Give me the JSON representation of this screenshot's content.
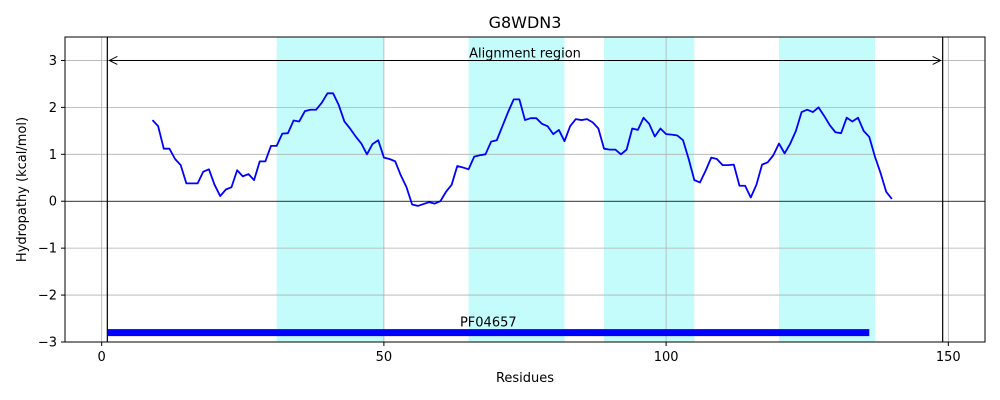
{
  "chart_data": {
    "type": "line",
    "title": "G8WDN3",
    "xlabel": "Residues",
    "ylabel": "Hydropathy (kcal/mol)",
    "xlim": [
      -6.5,
      156.5
    ],
    "ylim": [
      -3,
      3.5
    ],
    "xticks": [
      0,
      50,
      100,
      150
    ],
    "yticks": [
      -3,
      -2,
      -1,
      0,
      1,
      2,
      3
    ],
    "ytick_labels": [
      "−3",
      "−2",
      "−1",
      "0",
      "1",
      "2",
      "3"
    ],
    "grid": true,
    "regions_color": "#c4fcfc",
    "shaded_regions": [
      [
        31,
        50
      ],
      [
        65,
        82
      ],
      [
        89,
        105
      ],
      [
        120,
        137
      ]
    ],
    "alignment_region": {
      "label": "Alignment region",
      "start": 1,
      "end": 149,
      "y": 3.0
    },
    "domain_bar": {
      "label": "PF04657",
      "start": 1,
      "end": 136,
      "y": -2.8,
      "color": "#0000ff"
    },
    "series": [
      {
        "color": "#0000ff",
        "x": [
          9,
          10,
          11,
          12,
          13,
          14,
          15,
          16,
          17,
          18,
          19,
          20,
          21,
          22,
          23,
          24,
          25,
          26,
          27,
          28,
          29,
          30,
          31,
          32,
          33,
          34,
          35,
          36,
          37,
          38,
          39,
          40,
          41,
          42,
          43,
          44,
          45,
          46,
          47,
          48,
          49,
          50,
          51,
          52,
          53,
          54,
          55,
          56,
          57,
          58,
          59,
          60,
          61,
          62,
          63,
          64,
          65,
          66,
          67,
          68,
          69,
          70,
          71,
          72,
          73,
          74,
          75,
          76,
          77,
          78,
          79,
          80,
          81,
          82,
          83,
          84,
          85,
          86,
          87,
          88,
          89,
          90,
          91,
          92,
          93,
          94,
          95,
          96,
          97,
          98,
          99,
          100,
          101,
          102,
          103,
          104,
          105,
          106,
          107,
          108,
          109,
          110,
          111,
          112,
          113,
          114,
          115,
          116,
          117,
          118,
          119,
          120,
          121,
          122,
          123,
          124,
          125,
          126,
          127,
          128,
          129,
          130,
          131,
          132,
          133,
          134,
          135,
          136,
          137,
          138,
          139,
          140
        ],
        "y": [
          1.73,
          1.6,
          1.12,
          1.12,
          0.9,
          0.77,
          0.38,
          0.38,
          0.38,
          0.63,
          0.68,
          0.35,
          0.11,
          0.25,
          0.3,
          0.66,
          0.53,
          0.58,
          0.45,
          0.85,
          0.85,
          1.18,
          1.18,
          1.44,
          1.45,
          1.72,
          1.7,
          1.92,
          1.95,
          1.95,
          2.1,
          2.3,
          2.3,
          2.05,
          1.7,
          1.55,
          1.38,
          1.23,
          1.0,
          1.22,
          1.3,
          0.93,
          0.9,
          0.85,
          0.55,
          0.3,
          -0.07,
          -0.1,
          -0.06,
          -0.02,
          -0.05,
          0.0,
          0.2,
          0.35,
          0.75,
          0.72,
          0.68,
          0.95,
          0.98,
          1.0,
          1.27,
          1.3,
          1.6,
          1.9,
          2.17,
          2.17,
          1.73,
          1.77,
          1.77,
          1.65,
          1.6,
          1.43,
          1.52,
          1.28,
          1.6,
          1.75,
          1.73,
          1.75,
          1.68,
          1.55,
          1.12,
          1.1,
          1.1,
          1.0,
          1.1,
          1.55,
          1.52,
          1.78,
          1.65,
          1.38,
          1.55,
          1.43,
          1.42,
          1.4,
          1.3,
          0.9,
          0.45,
          0.4,
          0.65,
          0.93,
          0.9,
          0.77,
          0.77,
          0.78,
          0.33,
          0.33,
          0.08,
          0.35,
          0.78,
          0.83,
          0.98,
          1.23,
          1.02,
          1.23,
          1.5,
          1.9,
          1.95,
          1.9,
          2.0,
          1.82,
          1.62,
          1.47,
          1.45,
          1.78,
          1.7,
          1.78,
          1.5,
          1.37,
          0.95,
          0.6,
          0.2,
          0.05
        ]
      }
    ]
  }
}
